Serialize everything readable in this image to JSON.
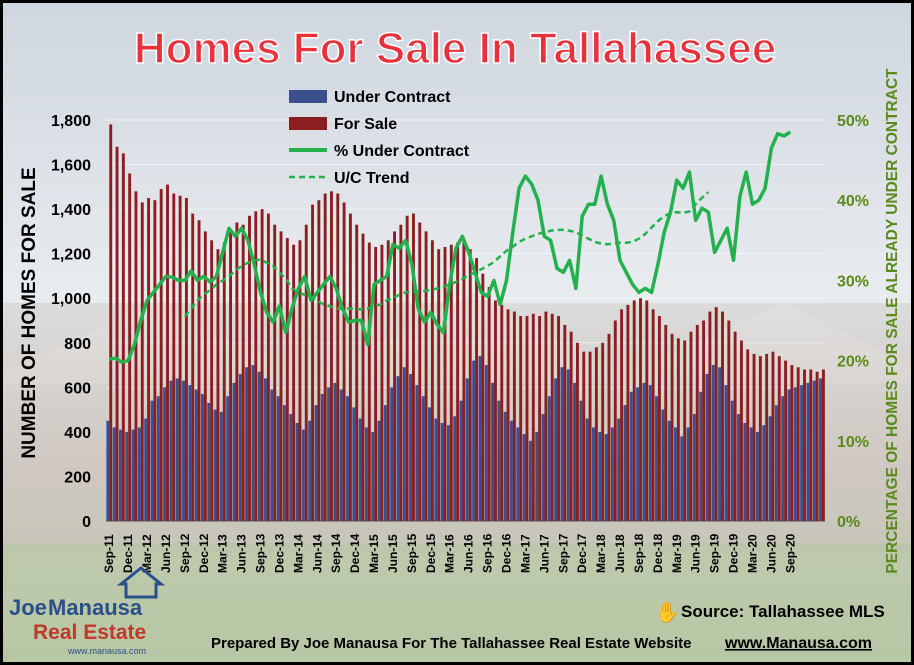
{
  "title": "Homes For Sale In Tallahassee",
  "source_text": "Source: Tallahassee MLS",
  "prepared_by": "Prepared By Joe Manausa For The Tallahassee Real Estate Website",
  "website": "www.Manausa.com",
  "logo": {
    "line1_a": "Joe",
    "line1_b": "Manausa",
    "line2": "Real Estate",
    "line3": "www.manausa.com"
  },
  "colors": {
    "title_fill": "#e8313a",
    "for_sale": "#8b1f1f",
    "under_contract": "#3a4f8c",
    "pct_line": "#22b14c",
    "trend_line": "#22b14c"
  },
  "chart_data": {
    "type": "bar",
    "title": "Homes For Sale In Tallahassee",
    "ylabel": "NUMBER OF HOMES FOR SALE",
    "y2label": "PERCENTAGE OF HOMES FOR SALE ALREADY UNDER CONTRACT",
    "ylim": [
      0,
      1800
    ],
    "y2lim": [
      0,
      50
    ],
    "yticks": [
      "0",
      "200",
      "400",
      "600",
      "800",
      "1,000",
      "1,200",
      "1,400",
      "1,600",
      "1,800"
    ],
    "y2ticks": [
      "0%",
      "10%",
      "20%",
      "30%",
      "40%",
      "50%"
    ],
    "xtick_labels": [
      "Sep-11",
      "Dec-11",
      "Mar-12",
      "Jun-12",
      "Sep-12",
      "Dec-12",
      "Mar-13",
      "Jun-13",
      "Sep-13",
      "Dec-13",
      "Mar-14",
      "Jun-14",
      "Sep-14",
      "Dec-14",
      "Mar-15",
      "Jun-15",
      "Sep-15",
      "Dec-15",
      "Mar-16",
      "Jun-16",
      "Sep-16",
      "Dec-16",
      "Mar-17",
      "Jun-17",
      "Sep-17",
      "Dec-17",
      "Mar-18",
      "Jun-18",
      "Sep-18",
      "Dec-18",
      "Mar-19",
      "Jun-19",
      "Sep-19",
      "Dec-19",
      "Mar-20",
      "Jun-20",
      "Sep-20"
    ],
    "legend": [
      "Under Contract",
      "For Sale",
      "% Under Contract",
      "U/C Trend"
    ],
    "legend_position": "top-left",
    "series": [
      {
        "name": "For Sale",
        "type": "bar",
        "values": [
          1780,
          1680,
          1650,
          1560,
          1480,
          1430,
          1450,
          1440,
          1490,
          1510,
          1470,
          1460,
          1450,
          1380,
          1350,
          1300,
          1260,
          1220,
          1250,
          1310,
          1340,
          1330,
          1370,
          1390,
          1400,
          1380,
          1330,
          1300,
          1270,
          1240,
          1260,
          1330,
          1420,
          1440,
          1470,
          1480,
          1470,
          1430,
          1380,
          1330,
          1290,
          1250,
          1230,
          1240,
          1260,
          1300,
          1330,
          1370,
          1380,
          1340,
          1300,
          1260,
          1220,
          1230,
          1240,
          1250,
          1260,
          1220,
          1180,
          1110,
          1050,
          990,
          970,
          950,
          940,
          920,
          920,
          930,
          920,
          940,
          930,
          920,
          880,
          850,
          800,
          760,
          760,
          780,
          800,
          840,
          900,
          950,
          970,
          990,
          1000,
          990,
          950,
          920,
          880,
          840,
          820,
          810,
          850,
          880,
          900,
          940,
          960,
          940,
          900,
          850,
          810,
          770,
          750,
          740,
          750,
          760,
          740,
          720,
          700,
          690,
          680,
          680,
          670,
          680
        ]
      },
      {
        "name": "Under Contract",
        "type": "bar",
        "values": [
          450,
          420,
          410,
          400,
          410,
          420,
          460,
          540,
          560,
          600,
          630,
          640,
          630,
          610,
          590,
          570,
          530,
          500,
          490,
          560,
          620,
          660,
          690,
          700,
          670,
          640,
          590,
          560,
          520,
          480,
          440,
          410,
          450,
          520,
          570,
          600,
          620,
          590,
          560,
          510,
          460,
          420,
          400,
          450,
          520,
          600,
          650,
          690,
          660,
          610,
          560,
          510,
          460,
          440,
          430,
          470,
          540,
          640,
          720,
          740,
          700,
          620,
          540,
          490,
          450,
          420,
          390,
          360,
          400,
          480,
          560,
          640,
          690,
          680,
          620,
          540,
          460,
          420,
          400,
          390,
          420,
          460,
          520,
          580,
          600,
          620,
          610,
          560,
          500,
          450,
          420,
          380,
          420,
          480,
          580,
          660,
          700,
          690,
          610,
          540,
          480,
          440,
          420,
          400,
          430,
          470,
          520,
          560,
          590,
          600,
          610,
          620,
          630,
          640
        ]
      },
      {
        "name": "% Under Contract",
        "type": "line",
        "axis": "y2",
        "values": [
          20.2,
          20.3,
          19.8,
          20.0,
          22.0,
          25.0,
          27.5,
          28.5,
          29.5,
          30.5,
          30.4,
          30.0,
          30.0,
          31.2,
          30.0,
          30.5,
          29.8,
          30.5,
          33.5,
          36.5,
          35.5,
          36.5,
          35.0,
          32.0,
          28.5,
          26.0,
          24.8,
          26.8,
          23.5,
          26.5,
          29.0,
          30.5,
          27.5,
          28.5,
          29.5,
          30.5,
          29.0,
          26.5,
          24.8,
          25.0,
          25.0,
          22.0,
          29.5,
          30.0,
          30.5,
          34.5,
          34.0,
          35.0,
          32.0,
          26.5,
          24.8,
          26.0,
          24.5,
          23.5,
          29.5,
          34.0,
          35.5,
          33.5,
          31.0,
          28.5,
          28.0,
          30.0,
          27.0,
          30.0,
          36.0,
          41.5,
          43.0,
          42.0,
          40.0,
          35.5,
          35.0,
          31.5,
          31.0,
          32.5,
          29.0,
          38.0,
          39.5,
          39.5,
          43.0,
          39.5,
          37.5,
          32.5,
          31.0,
          29.5,
          28.5,
          29.0,
          28.5,
          32.0,
          36.0,
          38.5,
          42.5,
          41.5,
          43.5,
          37.5,
          39.0,
          38.5,
          33.5,
          35.0,
          36.5,
          32.5,
          40.5,
          43.5,
          39.5,
          40.0,
          41.5,
          46.5,
          48.3,
          48.0,
          48.5
        ]
      },
      {
        "name": "U/C Trend",
        "type": "line",
        "axis": "y2",
        "style": "dashed",
        "start_index": 12,
        "values": [
          25.5,
          26.5,
          27.5,
          28.2,
          28.8,
          29.5,
          30.0,
          30.5,
          31.2,
          31.8,
          32.2,
          32.5,
          32.6,
          32.2,
          31.8,
          31.0,
          30.2,
          29.0,
          28.5,
          28.2,
          27.8,
          27.5,
          27.0,
          26.8,
          26.5,
          26.5,
          26.5,
          26.4,
          26.4,
          26.5,
          26.8,
          27.0,
          27.5,
          27.8,
          28.2,
          28.5,
          28.6,
          28.6,
          28.7,
          28.8,
          29.0,
          29.2,
          29.5,
          29.8,
          30.2,
          30.6,
          31.0,
          31.4,
          31.8,
          32.3,
          33.0,
          33.7,
          34.2,
          34.8,
          35.2,
          35.5,
          35.8,
          36.0,
          36.2,
          36.3,
          36.3,
          36.2,
          36.0,
          35.6,
          35.2,
          34.8,
          34.6,
          34.5,
          34.6,
          34.7,
          34.7,
          34.8,
          35.2,
          35.8,
          36.6,
          37.4,
          38.0,
          38.4,
          38.5,
          38.4,
          38.6,
          39.5,
          40.3,
          41.0
        ]
      }
    ]
  }
}
